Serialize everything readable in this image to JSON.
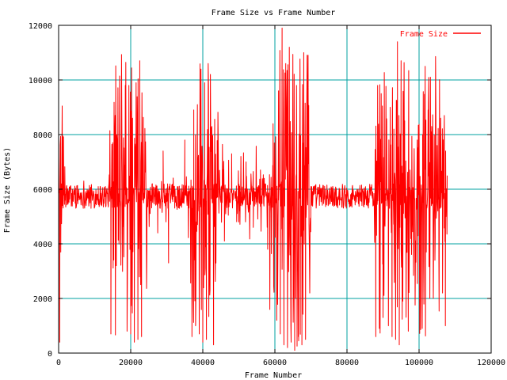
{
  "chart_data": {
    "type": "line",
    "title": "Frame Size vs Frame Number",
    "xlabel": "Frame Number",
    "ylabel": "Frame Size (Bytes)",
    "xlim": [
      0,
      120000
    ],
    "ylim": [
      0,
      12000
    ],
    "x_ticks": [
      0,
      20000,
      40000,
      60000,
      80000,
      100000,
      120000
    ],
    "y_ticks": [
      0,
      2000,
      4000,
      6000,
      8000,
      10000,
      12000
    ],
    "x_tick_labels": [
      "0",
      "20000",
      "40000",
      "60000",
      "80000",
      "100000",
      "120000"
    ],
    "y_tick_labels": [
      "0",
      "2000",
      "4000",
      "6000",
      "8000",
      "10000",
      "12000"
    ],
    "grid": true,
    "legend_position": "top-right",
    "colors": {
      "series": "#ff0000",
      "grid": "#00a0a0",
      "axes": "#000000",
      "background": "#ffffff"
    },
    "series": [
      {
        "name": "Frame Size",
        "x_start": 0,
        "x_end": 107800,
        "points": [
          [
            0,
            7200
          ],
          [
            300,
            400
          ],
          [
            600,
            3700
          ],
          [
            900,
            7100
          ],
          [
            1500,
            5800
          ],
          [
            3000,
            5900
          ],
          [
            5000,
            5500
          ],
          [
            7000,
            6300
          ],
          [
            9000,
            5300
          ],
          [
            11000,
            6100
          ],
          [
            13000,
            5800
          ],
          [
            14500,
            700
          ],
          [
            15000,
            7700
          ],
          [
            16000,
            3200
          ],
          [
            17000,
            8100
          ],
          [
            17800,
            5000
          ],
          [
            18500,
            9800
          ],
          [
            19000,
            800
          ],
          [
            19500,
            9800
          ],
          [
            20000,
            700
          ],
          [
            20500,
            8600
          ],
          [
            21000,
            400
          ],
          [
            21500,
            9900
          ],
          [
            22000,
            500
          ],
          [
            22500,
            10700
          ],
          [
            23000,
            600
          ],
          [
            23500,
            8100
          ],
          [
            24500,
            5200
          ],
          [
            26000,
            6200
          ],
          [
            27500,
            4400
          ],
          [
            29000,
            7400
          ],
          [
            30500,
            3300
          ],
          [
            32000,
            6000
          ],
          [
            33500,
            5300
          ],
          [
            35000,
            7800
          ],
          [
            36000,
            4300
          ],
          [
            37000,
            600
          ],
          [
            37500,
            8900
          ],
          [
            38000,
            1000
          ],
          [
            38500,
            9100
          ],
          [
            39000,
            700
          ],
          [
            39500,
            10400
          ],
          [
            40000,
            400
          ],
          [
            40500,
            9900
          ],
          [
            41000,
            500
          ],
          [
            41500,
            10600
          ],
          [
            42000,
            2300
          ],
          [
            42500,
            8300
          ],
          [
            43000,
            300
          ],
          [
            44000,
            6600
          ],
          [
            46000,
            4100
          ],
          [
            48000,
            7300
          ],
          [
            50000,
            4800
          ],
          [
            52000,
            7000
          ],
          [
            54000,
            4600
          ],
          [
            56000,
            6700
          ],
          [
            58000,
            3800
          ],
          [
            59500,
            8400
          ],
          [
            60500,
            1200
          ],
          [
            61000,
            9600
          ],
          [
            61500,
            700
          ],
          [
            62000,
            11900
          ],
          [
            62500,
            300
          ],
          [
            63000,
            10300
          ],
          [
            63500,
            200
          ],
          [
            64000,
            11200
          ],
          [
            64500,
            400
          ],
          [
            65000,
            9600
          ],
          [
            65500,
            100
          ],
          [
            66000,
            9800
          ],
          [
            66500,
            600
          ],
          [
            67000,
            8700
          ],
          [
            67500,
            300
          ],
          [
            68000,
            11000
          ],
          [
            68500,
            500
          ],
          [
            69000,
            9300
          ],
          [
            70000,
            6100
          ],
          [
            72000,
            5900
          ],
          [
            75000,
            5700
          ],
          [
            78000,
            6000
          ],
          [
            81000,
            5800
          ],
          [
            84000,
            5700
          ],
          [
            87000,
            5900
          ],
          [
            88000,
            600
          ],
          [
            88500,
            9800
          ],
          [
            89000,
            900
          ],
          [
            89500,
            9500
          ],
          [
            90000,
            1300
          ],
          [
            91000,
            8500
          ],
          [
            91500,
            1000
          ],
          [
            92000,
            9000
          ],
          [
            92500,
            600
          ],
          [
            93000,
            8200
          ],
          [
            93500,
            500
          ],
          [
            94000,
            11400
          ],
          [
            94500,
            300
          ],
          [
            95000,
            10700
          ],
          [
            95500,
            1900
          ],
          [
            96000,
            8500
          ],
          [
            97000,
            800
          ],
          [
            97500,
            6700
          ],
          [
            98500,
            4000
          ],
          [
            99500,
            7800
          ],
          [
            100500,
            3200
          ],
          [
            101000,
            8000
          ],
          [
            102000,
            3700
          ],
          [
            102500,
            8900
          ],
          [
            103000,
            2000
          ],
          [
            103500,
            8300
          ],
          [
            104000,
            2900
          ],
          [
            105000,
            7600
          ],
          [
            105500,
            3400
          ],
          [
            106000,
            8600
          ],
          [
            106500,
            2200
          ],
          [
            107000,
            8700
          ],
          [
            107300,
            1000
          ],
          [
            107800,
            6500
          ]
        ]
      }
    ]
  }
}
